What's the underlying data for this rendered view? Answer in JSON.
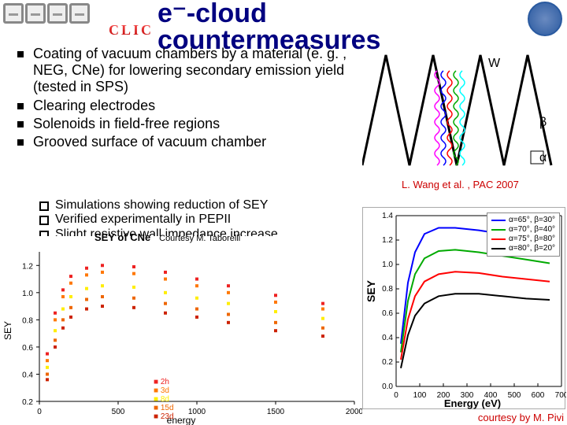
{
  "title_html": "e⁻-cloud<br>countermeasures",
  "clic": "CLIC",
  "bullets": [
    "Coating of vacuum chambers by a material (e. g. , NEG, CNe) for lowering secondary emission yield (tested in SPS)",
    "Clearing electrodes",
    "Solenoids in field-free regions",
    "Grooved surface of vacuum chamber"
  ],
  "subbullets": [
    "Simulations showing reduction of SEY",
    "Verified experimentally in PEPII",
    "Slight resistive wall impedance increase"
  ],
  "caption1": "L. Wang et al. , PAC 2007",
  "caption2": "courtesy by M. Pivi",
  "groove": {
    "peaks_x": [
      30,
      90,
      150,
      210
    ],
    "trough_y": 150,
    "peak_y": 10,
    "labels": {
      "W": "W",
      "beta": "β",
      "alpha": "α"
    },
    "electron_colors": [
      "#f0f",
      "#00f",
      "#f00",
      "#0a0",
      "#0ff"
    ]
  },
  "chart1": {
    "title": "SEY of CNe",
    "subtitle": "Courtesy M. Taborelli",
    "ylabel": "SEY",
    "xlabel": "energy",
    "xlim": [
      0,
      2000
    ],
    "xtick_step": 500,
    "ylim": [
      0.2,
      1.3
    ],
    "yticks": [
      0.2,
      0.4,
      0.6,
      0.8,
      1.0,
      1.2
    ],
    "series": [
      {
        "label": "2h",
        "color": "#ee2222",
        "values": [
          [
            50,
            0.55
          ],
          [
            100,
            0.85
          ],
          [
            150,
            1.02
          ],
          [
            200,
            1.12
          ],
          [
            300,
            1.18
          ],
          [
            400,
            1.2
          ],
          [
            600,
            1.19
          ],
          [
            800,
            1.15
          ],
          [
            1000,
            1.1
          ],
          [
            1200,
            1.05
          ],
          [
            1500,
            0.98
          ],
          [
            1800,
            0.92
          ]
        ]
      },
      {
        "label": "3d",
        "color": "#ff7700",
        "values": [
          [
            50,
            0.5
          ],
          [
            100,
            0.8
          ],
          [
            150,
            0.97
          ],
          [
            200,
            1.07
          ],
          [
            300,
            1.13
          ],
          [
            400,
            1.15
          ],
          [
            600,
            1.14
          ],
          [
            800,
            1.1
          ],
          [
            1000,
            1.05
          ],
          [
            1200,
            1.0
          ],
          [
            1500,
            0.93
          ],
          [
            1800,
            0.88
          ]
        ]
      },
      {
        "label": "8d",
        "color": "#ffee00",
        "values": [
          [
            50,
            0.45
          ],
          [
            100,
            0.72
          ],
          [
            150,
            0.88
          ],
          [
            200,
            0.97
          ],
          [
            300,
            1.03
          ],
          [
            400,
            1.05
          ],
          [
            600,
            1.04
          ],
          [
            800,
            1.0
          ],
          [
            1000,
            0.96
          ],
          [
            1200,
            0.92
          ],
          [
            1500,
            0.86
          ],
          [
            1800,
            0.81
          ]
        ]
      },
      {
        "label": "15d",
        "color": "#ee6600",
        "values": [
          [
            50,
            0.4
          ],
          [
            100,
            0.65
          ],
          [
            150,
            0.8
          ],
          [
            200,
            0.89
          ],
          [
            300,
            0.95
          ],
          [
            400,
            0.97
          ],
          [
            600,
            0.96
          ],
          [
            800,
            0.92
          ],
          [
            1000,
            0.88
          ],
          [
            1200,
            0.84
          ],
          [
            1500,
            0.78
          ],
          [
            1800,
            0.74
          ]
        ]
      },
      {
        "label": "23d",
        "color": "#cc2200",
        "values": [
          [
            50,
            0.36
          ],
          [
            100,
            0.6
          ],
          [
            150,
            0.74
          ],
          [
            200,
            0.82
          ],
          [
            300,
            0.88
          ],
          [
            400,
            0.9
          ],
          [
            600,
            0.89
          ],
          [
            800,
            0.85
          ],
          [
            1000,
            0.82
          ],
          [
            1200,
            0.78
          ],
          [
            1500,
            0.72
          ],
          [
            1800,
            0.68
          ]
        ]
      }
    ]
  },
  "chart2": {
    "ylabel": "SEY",
    "xlabel": "Energy (eV)",
    "xlim": [
      0,
      700
    ],
    "xticks": [
      0,
      100,
      200,
      300,
      400,
      500,
      600,
      700
    ],
    "ylim": [
      0,
      1.4
    ],
    "yticks": [
      0,
      0.2,
      0.4,
      0.6,
      0.8,
      1.0,
      1.2,
      1.4
    ],
    "legend": [
      {
        "label": "α=65°, β=30°",
        "color": "#0000ff"
      },
      {
        "label": "α=70°, β=40°",
        "color": "#00aa00"
      },
      {
        "label": "α=75°, β=80°",
        "color": "#ff0000"
      },
      {
        "label": "α=80°, β=20°",
        "color": "#000000"
      }
    ],
    "series": [
      {
        "color": "#0000ff",
        "values": [
          [
            20,
            0.35
          ],
          [
            50,
            0.85
          ],
          [
            80,
            1.1
          ],
          [
            120,
            1.25
          ],
          [
            180,
            1.3
          ],
          [
            250,
            1.3
          ],
          [
            350,
            1.28
          ],
          [
            450,
            1.25
          ],
          [
            550,
            1.21
          ],
          [
            650,
            1.18
          ]
        ]
      },
      {
        "color": "#00aa00",
        "values": [
          [
            20,
            0.28
          ],
          [
            50,
            0.7
          ],
          [
            80,
            0.92
          ],
          [
            120,
            1.05
          ],
          [
            180,
            1.11
          ],
          [
            250,
            1.12
          ],
          [
            350,
            1.1
          ],
          [
            450,
            1.07
          ],
          [
            550,
            1.04
          ],
          [
            650,
            1.01
          ]
        ]
      },
      {
        "color": "#ff0000",
        "values": [
          [
            20,
            0.22
          ],
          [
            50,
            0.55
          ],
          [
            80,
            0.74
          ],
          [
            120,
            0.86
          ],
          [
            180,
            0.92
          ],
          [
            250,
            0.94
          ],
          [
            350,
            0.93
          ],
          [
            450,
            0.9
          ],
          [
            550,
            0.88
          ],
          [
            650,
            0.86
          ]
        ]
      },
      {
        "color": "#000000",
        "values": [
          [
            20,
            0.15
          ],
          [
            50,
            0.42
          ],
          [
            80,
            0.58
          ],
          [
            120,
            0.68
          ],
          [
            180,
            0.74
          ],
          [
            250,
            0.76
          ],
          [
            350,
            0.76
          ],
          [
            450,
            0.74
          ],
          [
            550,
            0.72
          ],
          [
            650,
            0.71
          ]
        ]
      }
    ]
  }
}
